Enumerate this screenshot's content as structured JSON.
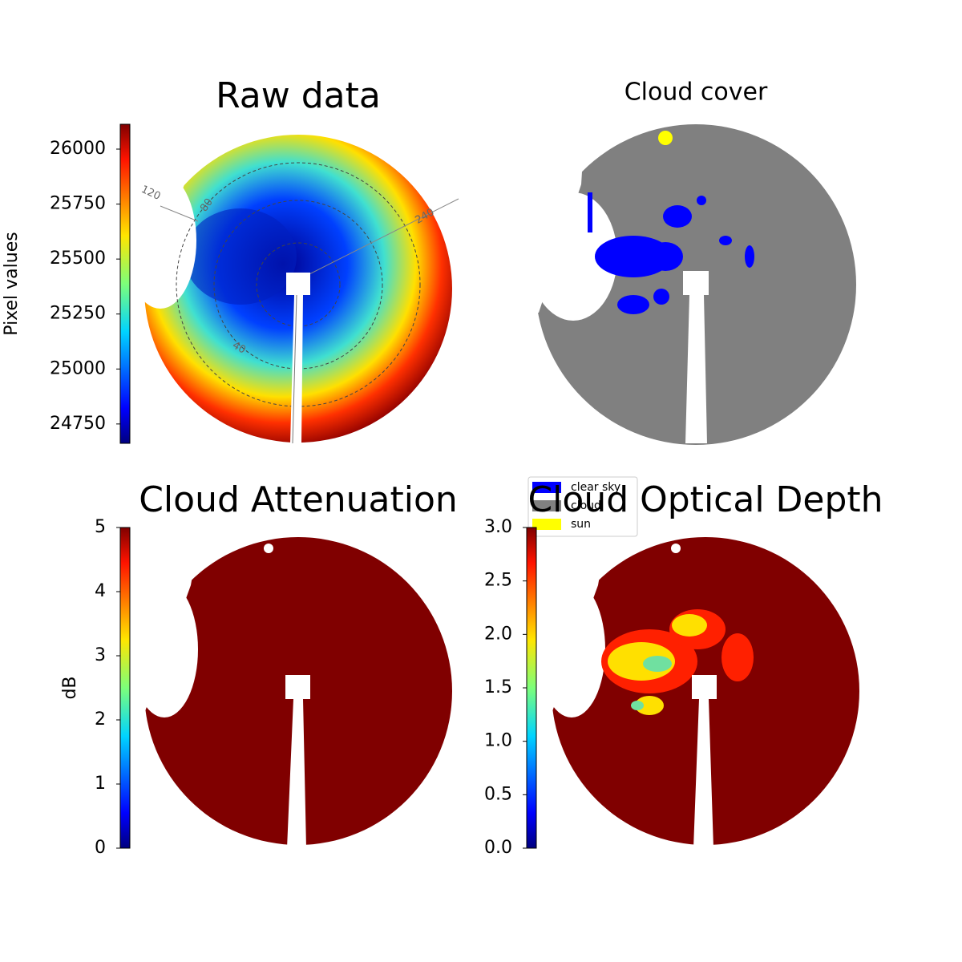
{
  "chart_data": [
    {
      "type": "image",
      "title": "Raw data",
      "colorbar_label": "Pixel values",
      "cmap": "jet",
      "ylim": [
        24662,
        26113
      ],
      "yticks": [
        24750,
        25000,
        25250,
        25500,
        25750,
        26000
      ],
      "annotations": [
        "120",
        "80",
        "240",
        "40"
      ]
    },
    {
      "type": "image",
      "title": "Cloud cover",
      "legend": [
        {
          "name": "clear sky",
          "color": "#0000ff"
        },
        {
          "name": "cloud",
          "color": "#808080"
        },
        {
          "name": "sun",
          "color": "#ffff00"
        }
      ]
    },
    {
      "type": "image",
      "title": "Cloud Attenuation",
      "colorbar_label": "dB",
      "cmap": "jet",
      "ylim": [
        0,
        5
      ],
      "yticks": [
        0,
        1,
        2,
        3,
        4,
        5
      ]
    },
    {
      "type": "image",
      "title": "Cloud Optical Depth",
      "cmap": "jet",
      "ylim": [
        0,
        3
      ],
      "yticks": [
        {
          "value": 0,
          "label": "0.0"
        },
        0.5,
        {
          "value": 1,
          "label": "1.0"
        },
        1.5,
        {
          "value": 2,
          "label": "2.0"
        },
        2.5,
        {
          "value": 3,
          "label": "3.0"
        }
      ]
    }
  ]
}
